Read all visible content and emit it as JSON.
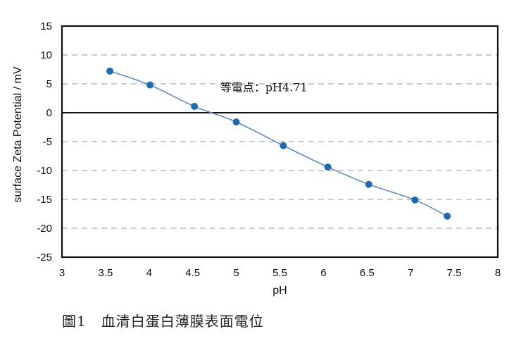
{
  "caption": "圖1　血清白蛋白薄膜表面電位",
  "colors": {
    "marker": "#1f6bb3",
    "line": "#5b8dc4",
    "grid": "#b8b8b8",
    "axis": "#111111",
    "zero_line": "#111111"
  },
  "chart_data": {
    "type": "line",
    "title": "",
    "xlabel": "pH",
    "ylabel": "surface Zeta Potential / mV",
    "xlim": [
      3,
      8
    ],
    "ylim": [
      -25,
      15
    ],
    "xticks": [
      3,
      3.5,
      4,
      4.5,
      5,
      5.5,
      6,
      6.5,
      7,
      7.5,
      8
    ],
    "xtick_labels": [
      "3",
      "3.5",
      "4",
      "4.5",
      "5",
      "5.5",
      "6",
      "6.5",
      "7",
      "7.5",
      "8"
    ],
    "yticks": [
      15,
      10,
      5,
      0,
      -5,
      -10,
      -15,
      -20,
      -25
    ],
    "ytick_labels": [
      "15",
      "10",
      "5",
      "0",
      "-5",
      "-10",
      "-15",
      "-20",
      "-25"
    ],
    "grid": {
      "horizontal": true,
      "style": "dashed",
      "vertical": false
    },
    "zero_line": true,
    "legend": null,
    "series": [
      {
        "name": "surface Zeta Potential",
        "x": [
          3.55,
          4.01,
          4.52,
          5.0,
          5.54,
          6.05,
          6.52,
          7.05,
          7.42
        ],
        "y": [
          7.2,
          4.8,
          1.1,
          -1.6,
          -5.7,
          -9.4,
          -12.4,
          -15.1,
          -17.9
        ],
        "marker": "circle",
        "smooth": true
      }
    ],
    "annotations": [
      {
        "text": "等電点：pH4.71",
        "x": 5.3,
        "y": 3.7
      }
    ]
  }
}
